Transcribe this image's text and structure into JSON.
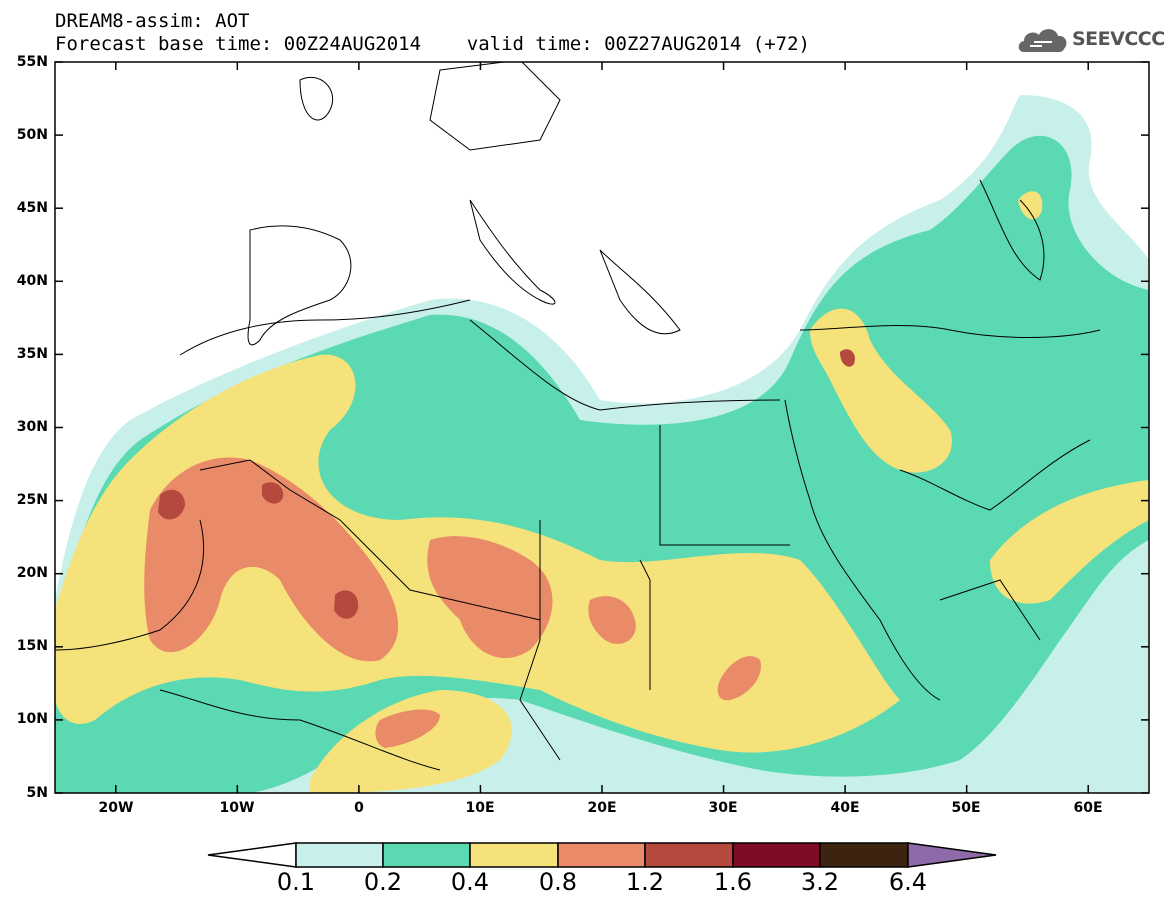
{
  "header": {
    "line1": "DREAM8-assim: AOT",
    "line2": "Forecast base time: 00Z24AUG2014    valid time: 00Z27AUG2014 (+72)"
  },
  "logo": {
    "text": "SEEVCCC",
    "icon": "cloud-logo-icon"
  },
  "map": {
    "lat_range": [
      5,
      55
    ],
    "lon_range": [
      -25,
      65
    ],
    "y_ticks": [
      "55N",
      "50N",
      "45N",
      "40N",
      "35N",
      "30N",
      "25N",
      "20N",
      "15N",
      "10N",
      "5N"
    ],
    "x_ticks": [
      "20W",
      "10W",
      "0",
      "10E",
      "20E",
      "30E",
      "40E",
      "50E",
      "60E"
    ]
  },
  "colorbar": {
    "labels": [
      "0.1",
      "0.2",
      "0.4",
      "0.8",
      "1.2",
      "1.6",
      "3.2",
      "6.4"
    ],
    "colors": [
      "#ffffff",
      "#c8f0ea",
      "#5ad9b2",
      "#f5e27a",
      "#e98a68",
      "#b6493e",
      "#7e0a24",
      "#3c2410",
      "#8e6aa8"
    ]
  },
  "colors": {
    "level_01_02": "#c8f0ea",
    "level_02_04": "#5ad9b2",
    "level_04_08": "#f5e27a",
    "level_08_12": "#e98a68",
    "level_12_16": "#b6493e",
    "land_lines": "#000000"
  }
}
